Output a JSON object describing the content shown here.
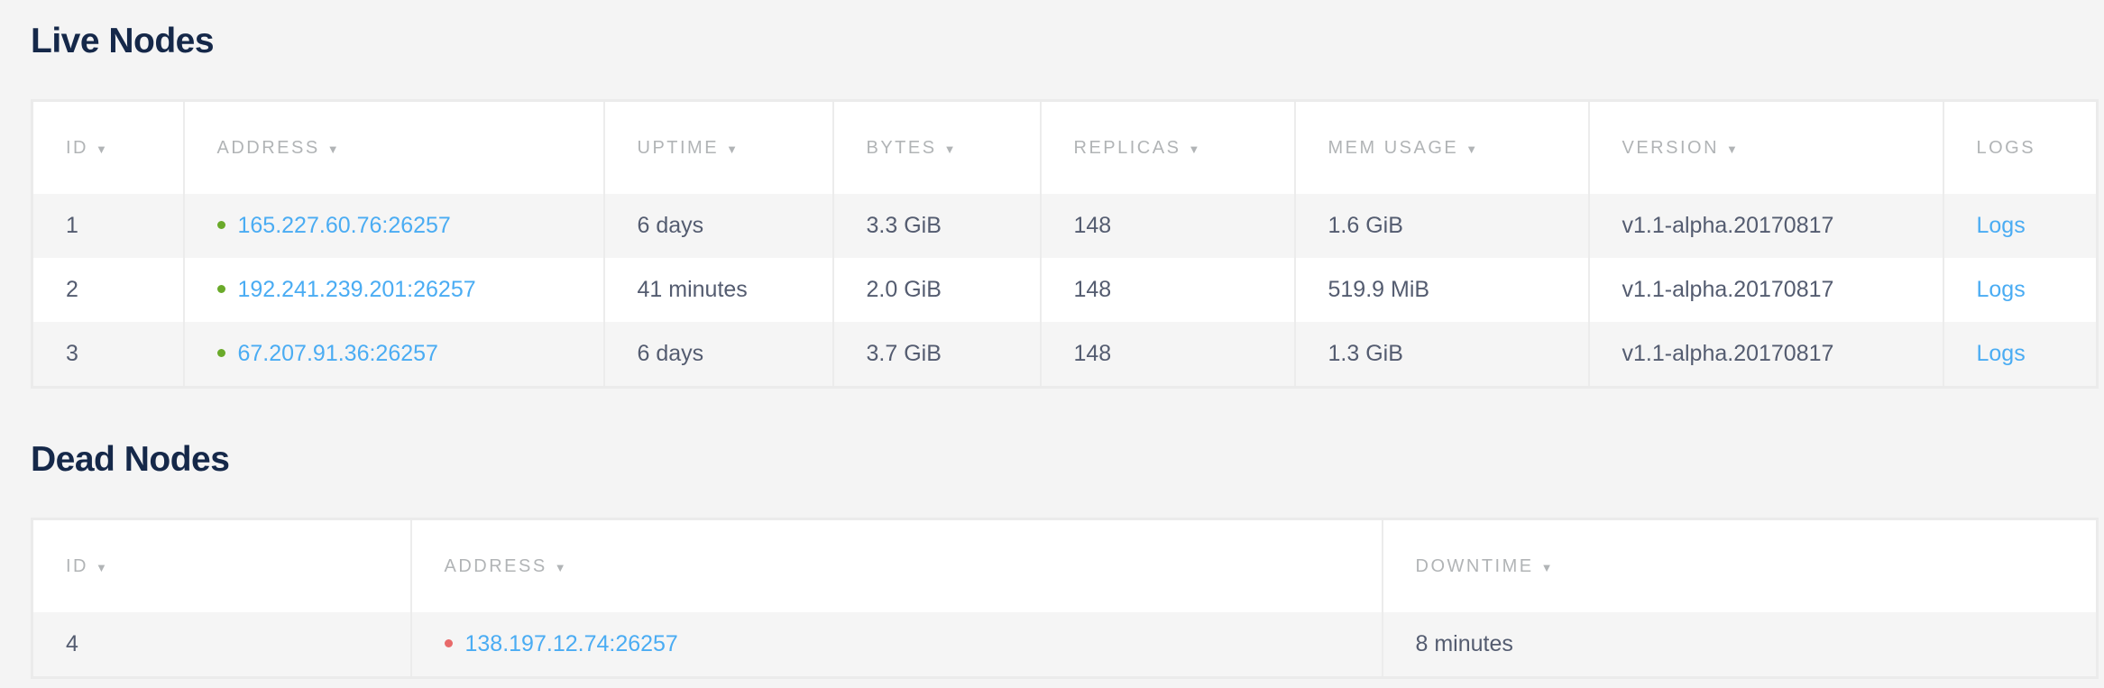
{
  "live": {
    "title": "Live Nodes",
    "columns": [
      {
        "label": "ID",
        "sort_icon": "▼"
      },
      {
        "label": "ADDRESS",
        "sort_icon": "▼"
      },
      {
        "label": "UPTIME",
        "sort_icon": "▼"
      },
      {
        "label": "BYTES",
        "sort_icon": "▼"
      },
      {
        "label": "REPLICAS",
        "sort_icon": "▼"
      },
      {
        "label": "MEM USAGE",
        "sort_icon": "▼"
      },
      {
        "label": "VERSION",
        "sort_icon": "▼"
      },
      {
        "label": "LOGS"
      }
    ],
    "rows": [
      {
        "id": "1",
        "address": "165.227.60.76:26257",
        "uptime": "6 days",
        "bytes": "3.3 GiB",
        "replicas": "148",
        "mem": "1.6 GiB",
        "version": "v1.1-alpha.20170817",
        "logs": "Logs"
      },
      {
        "id": "2",
        "address": "192.241.239.201:26257",
        "uptime": "41 minutes",
        "bytes": "2.0 GiB",
        "replicas": "148",
        "mem": "519.9 MiB",
        "version": "v1.1-alpha.20170817",
        "logs": "Logs"
      },
      {
        "id": "3",
        "address": "67.207.91.36:26257",
        "uptime": "6 days",
        "bytes": "3.7 GiB",
        "replicas": "148",
        "mem": "1.3 GiB",
        "version": "v1.1-alpha.20170817",
        "logs": "Logs"
      }
    ],
    "status_color": "#6aaa2a"
  },
  "dead": {
    "title": "Dead Nodes",
    "columns": [
      {
        "label": "ID",
        "sort_icon": "▼"
      },
      {
        "label": "ADDRESS",
        "sort_icon": "▼"
      },
      {
        "label": "DOWNTIME",
        "sort_icon": "▼"
      }
    ],
    "rows": [
      {
        "id": "4",
        "address": "138.197.12.74:26257",
        "downtime": "8 minutes"
      }
    ],
    "status_color": "#e86a6a"
  },
  "colors": {
    "link": "#4aacf3",
    "heading": "#152849",
    "text": "#545c70"
  }
}
